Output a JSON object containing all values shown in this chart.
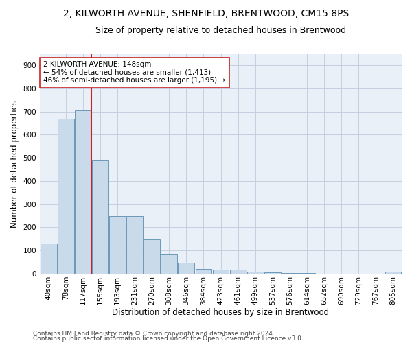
{
  "title1": "2, KILWORTH AVENUE, SHENFIELD, BRENTWOOD, CM15 8PS",
  "title2": "Size of property relative to detached houses in Brentwood",
  "xlabel": "Distribution of detached houses by size in Brentwood",
  "ylabel": "Number of detached properties",
  "footer1": "Contains HM Land Registry data © Crown copyright and database right 2024.",
  "footer2": "Contains public sector information licensed under the Open Government Licence v3.0.",
  "bar_labels": [
    "40sqm",
    "78sqm",
    "117sqm",
    "155sqm",
    "193sqm",
    "231sqm",
    "270sqm",
    "308sqm",
    "346sqm",
    "384sqm",
    "423sqm",
    "461sqm",
    "499sqm",
    "537sqm",
    "576sqm",
    "614sqm",
    "652sqm",
    "690sqm",
    "729sqm",
    "767sqm",
    "805sqm"
  ],
  "bar_values": [
    130,
    670,
    705,
    490,
    248,
    248,
    148,
    85,
    47,
    22,
    17,
    17,
    10,
    5,
    2,
    2,
    1,
    1,
    1,
    1,
    10
  ],
  "bar_color": "#c9daea",
  "bar_edge_color": "#5b8db0",
  "grid_color": "#c5cfe0",
  "background_color": "#eaf0f8",
  "vline_color": "#cc2222",
  "annotation_line1": "2 KILWORTH AVENUE: 148sqm",
  "annotation_line2": "← 54% of detached houses are smaller (1,413)",
  "annotation_line3": "46% of semi-detached houses are larger (1,195) →",
  "annotation_box_color": "#ffffff",
  "annotation_box_edge": "#cc2222",
  "ylim": [
    0,
    950
  ],
  "yticks": [
    0,
    100,
    200,
    300,
    400,
    500,
    600,
    700,
    800,
    900
  ],
  "title1_fontsize": 10,
  "title2_fontsize": 9,
  "xlabel_fontsize": 8.5,
  "ylabel_fontsize": 8.5,
  "tick_fontsize": 7.5,
  "annotation_fontsize": 7.5,
  "footer_fontsize": 6.5
}
